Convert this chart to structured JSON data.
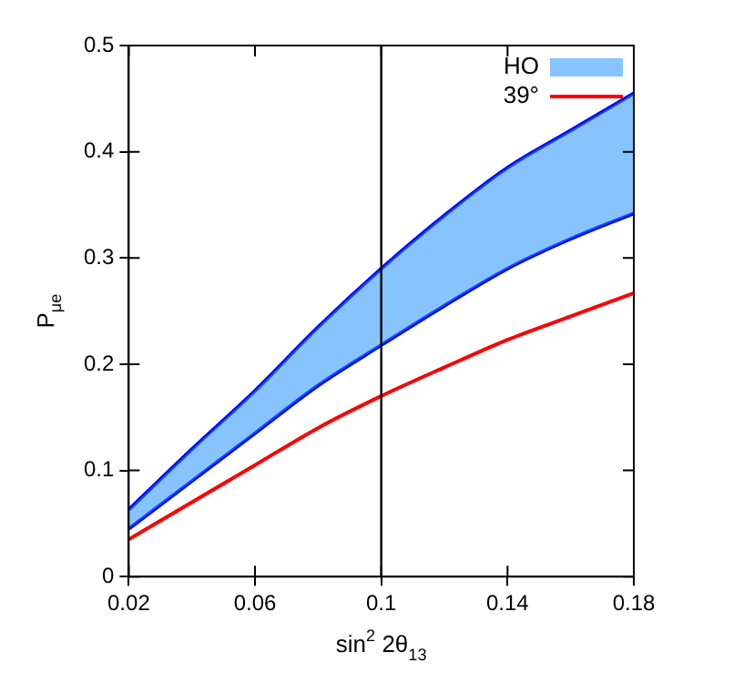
{
  "chart_data": {
    "type": "line",
    "xlabel": "sin$^{2}$ 2θ$_{13}$",
    "ylabel": "P$_{μe}$",
    "x": [
      0.02,
      0.04,
      0.06,
      0.08,
      0.1,
      0.12,
      0.14,
      0.16,
      0.18
    ],
    "series": [
      {
        "name": "HO",
        "color": "#1e90ff",
        "values": [
          null,
          null,
          null,
          null,
          null,
          null,
          null,
          null,
          null
        ],
        "lower": [
          0.045,
          0.09,
          0.135,
          0.18,
          0.218,
          0.255,
          0.29,
          0.318,
          0.342
        ],
        "upper": [
          0.063,
          0.12,
          0.175,
          0.235,
          0.29,
          0.34,
          0.385,
          0.42,
          0.455
        ]
      },
      {
        "color": "#0000ff",
        "values": [
          0.045,
          0.09,
          0.135,
          0.18,
          0.218,
          0.255,
          0.29,
          0.318,
          0.342
        ]
      },
      {
        "color": "#0000ff",
        "values": [
          0.063,
          0.12,
          0.175,
          0.235,
          0.29,
          0.34,
          0.385,
          0.42,
          0.455
        ]
      },
      {
        "name": "39°",
        "color": "#ff0000",
        "values": [
          0.035,
          0.07,
          0.105,
          0.14,
          0.17,
          0.197,
          0.223,
          0.245,
          0.267
        ]
      }
    ],
    "ref_lines": [
      {
        "axis": "x",
        "value": 0.1,
        "color": "#000000"
      }
    ],
    "xlim": [
      0.02,
      0.18
    ],
    "xticks": [
      0.02,
      0.06,
      0.1,
      0.14,
      0.18
    ],
    "ylim": [
      0,
      0.5
    ],
    "yticks": [
      0,
      0.1,
      0.2,
      0.3,
      0.4,
      0.5
    ],
    "grid": false,
    "legend": "top right",
    "marker": "none",
    "line_style": "solid"
  }
}
